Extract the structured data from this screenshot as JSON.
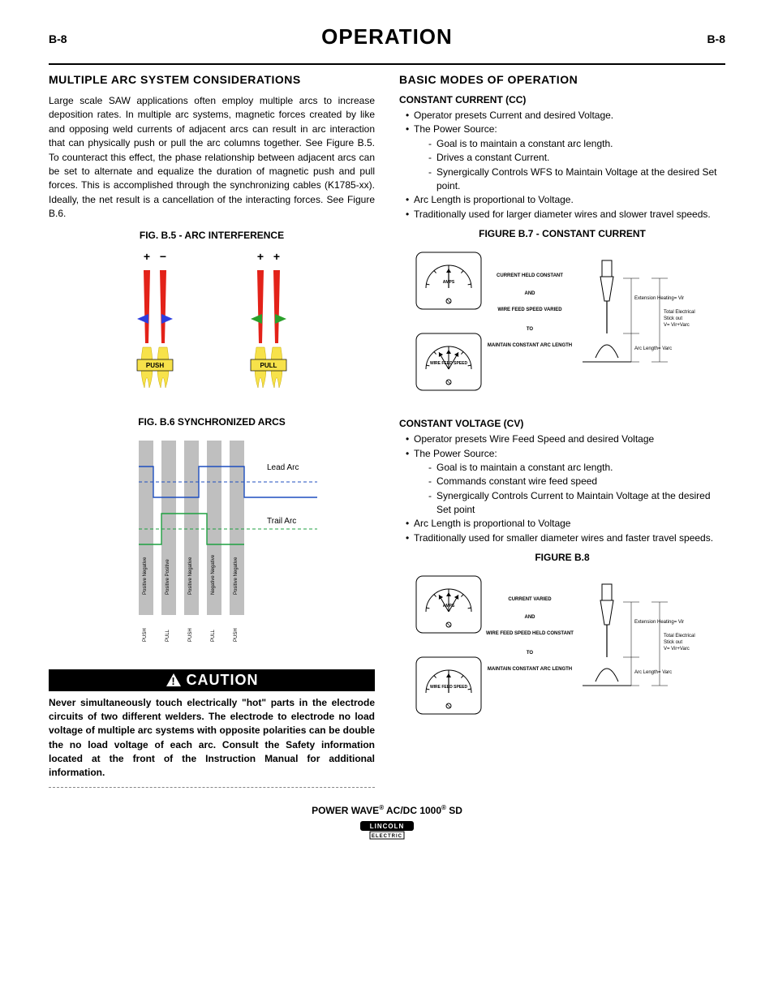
{
  "header": {
    "page_left": "B-8",
    "page_right": "B-8",
    "title": "OPERATION"
  },
  "left": {
    "h2": "MULTIPLE ARC SYSTEM CONSIDERATIONS",
    "para1": "Large scale SAW applications often employ multiple arcs to increase deposition rates. In multiple arc systems, magnetic forces created by like and opposing weld currents of adjacent arcs can result in arc interaction that can physically push or pull the arc columns together. See Figure B.5. To counteract this effect, the phase relationship between adjacent arcs can be set to alternate and equalize the duration of magnetic push and pull forces. This is accomplished through the synchronizing cables (K1785-xx). Ideally, the net result is a cancellation of the interacting forces. See Figure B.6.",
    "fig_b5_caption": "FIG. B.5 - ARC INTERFERENCE",
    "fig_b5": {
      "red": "#e32219",
      "yellow": "#f7e24a",
      "blue": "#2d3ee0",
      "green": "#2aa02a",
      "push_label": "PUSH",
      "pull_label": "PULL"
    },
    "fig_b6_caption": "FIG. B.6 SYNCHRONIZED ARCS",
    "fig_b6": {
      "bar_color": "#bfbfbf",
      "lead_arc_color": "#1f4fbf",
      "trail_arc_color": "#1fa040",
      "lead_label": "Lead Arc",
      "trail_label": "Trail Arc",
      "col_labels": [
        "Positive Negative",
        "Positive  Positive",
        "Positive Negative",
        "Negative  Negative",
        "Positive Negative"
      ],
      "bottom_labels": [
        "PUSH",
        "PULL",
        "PUSH",
        "PULL",
        "PUSH"
      ]
    },
    "caution_bar": "CAUTION",
    "caution_text": "Never simultaneously touch electrically \"hot\" parts in the electrode circuits of two different welders. The electrode to electrode no load voltage of multiple arc systems with opposite polarities can be double the no load voltage of each arc. Consult the Safety information located at the front of the Instruction Manual for additional information."
  },
  "right": {
    "h2": "BASIC MODES OF OPERATION",
    "cc": {
      "title": "CONSTANT CURRENT (CC)",
      "items": [
        "Operator presets Current and desired Voltage.",
        "The Power Source:",
        "Arc Length is proportional to Voltage.",
        "Traditionally used for larger diameter wires and slower travel speeds."
      ],
      "subitems": [
        "Goal is to maintain a constant arc length.",
        "Drives a constant Current.",
        "Synergically Controls WFS to Maintain Voltage at the desired Set point."
      ],
      "fig_caption": "FIGURE B.7 - CONSTANT CURRENT",
      "diagram": {
        "m1_label": "AMPS",
        "m2_label": "WIRE FEED SPEED",
        "t1": "CURRENT HELD CONSTANT",
        "t2": "AND",
        "t3": "WIRE FEED SPEED VARIED",
        "t4": "TO",
        "t5": "MAINTAIN CONSTANT ARC LENGTH",
        "d1": "Extension Heating= Vir",
        "d2": "Arc Length=  Varc",
        "d3": "Total Electrical Stick out V= Vir+Varc"
      }
    },
    "cv": {
      "title": "CONSTANT VOLTAGE (CV)",
      "items": [
        "Operator presets Wire Feed Speed and desired Voltage",
        "The Power Source:",
        "Arc Length is proportional to Voltage",
        "Traditionally used for smaller diameter wires and faster travel speeds."
      ],
      "subitems": [
        "Goal is to maintain a constant arc length.",
        "Commands constant wire feed speed",
        "Synergically Controls Current to Maintain Voltage at the desired Set point"
      ],
      "fig_caption": "FIGURE B.8",
      "diagram": {
        "m1_label": "AMPS",
        "m2_label": "WIRE FEED SPEED",
        "t1": "CURRENT VARIED",
        "t2": "AND",
        "t3": "WIRE FEED SPEED HELD CONSTANT",
        "t4": "TO",
        "t5": "MAINTAIN CONSTANT ARC LENGTH",
        "d1": "Extension Heating= Vir",
        "d2": "Arc Length=  Varc",
        "d3": "Total Electrical Stick out V= Vir+Varc"
      }
    }
  },
  "footer": {
    "line": "POWER WAVE",
    "sup1": "®",
    "mid": " AC/DC 1000",
    "sup2": "®",
    "end": " SD",
    "logo_top": "LINCOLN",
    "logo_bot": "ELECTRIC"
  },
  "style": {
    "page_bg": "#ffffff",
    "text_color": "#000000"
  }
}
